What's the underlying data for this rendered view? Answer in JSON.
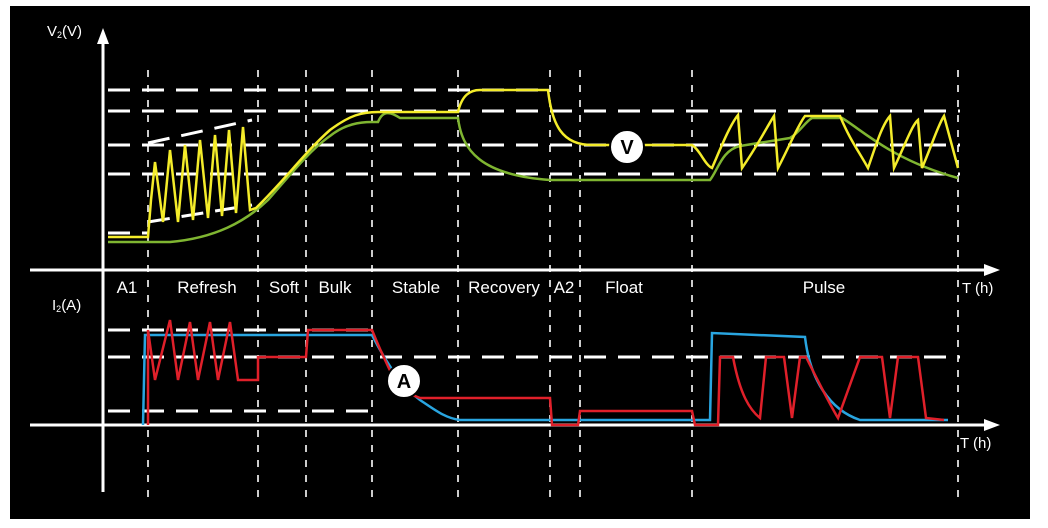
{
  "top_axis": {
    "label_main": "V",
    "label_sub": "2",
    "label_unit": "(V)"
  },
  "bottom_axis": {
    "label_main": "I",
    "label_sub": "2",
    "label_unit": "(A)"
  },
  "time_label_top": "T (h)",
  "time_label_bottom": "T (h)",
  "phases": [
    "A1",
    "Refresh",
    "Soft",
    "Bulk",
    "Stable",
    "Recovery",
    "A2",
    "Float",
    "Pulse"
  ],
  "voltage_marker": "V",
  "current_marker": "A",
  "colors": {
    "background": "#000000",
    "axis": "#ffffff",
    "voltage_primary": "#f4ec2a",
    "voltage_secondary": "#7fb531",
    "current_primary": "#e0202a",
    "current_secondary": "#29a5e0"
  }
}
